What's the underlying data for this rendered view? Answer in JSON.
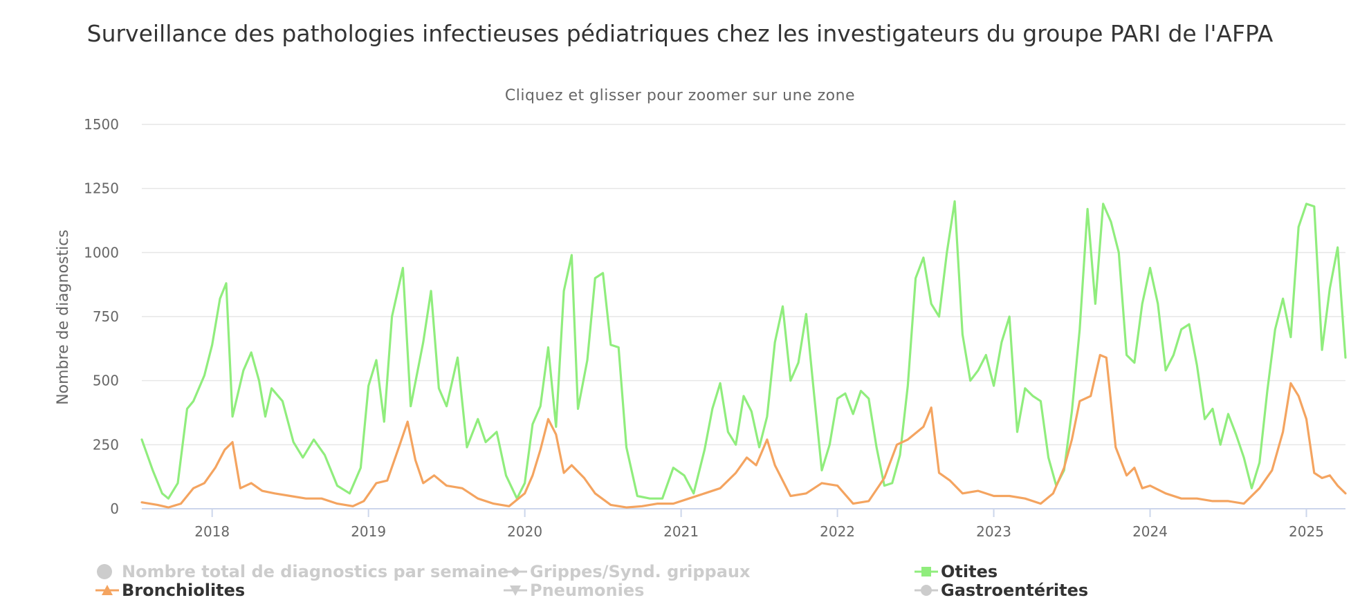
{
  "chart_data": {
    "type": "line",
    "title": "Surveillance des pathologies infectieuses pédiatriques chez les investigateurs du groupe PARI de l'AFPA",
    "subtitle": "Cliquez et glisser pour zoomer sur une zone",
    "ylabel": "Nombre de diagnostics",
    "xlabel": "",
    "ylim": [
      0,
      1500
    ],
    "xlim": [
      2017.55,
      2025.25
    ],
    "yticks": [
      "0",
      "250",
      "500",
      "750",
      "1000",
      "1250",
      "1500"
    ],
    "xticks": [
      "2018",
      "2019",
      "2020",
      "2021",
      "2022",
      "2023",
      "2024",
      "2025"
    ],
    "grid": true,
    "legend_position": "bottom",
    "colors": {
      "otites": "#90ed7d",
      "bronchiolites": "#f4a460",
      "hidden": "#cccccc"
    },
    "series": [
      {
        "name": "Otites",
        "visible": true,
        "points": [
          [
            2017.55,
            270
          ],
          [
            2017.62,
            150
          ],
          [
            2017.68,
            60
          ],
          [
            2017.72,
            40
          ],
          [
            2017.78,
            100
          ],
          [
            2017.84,
            390
          ],
          [
            2017.88,
            420
          ],
          [
            2017.95,
            520
          ],
          [
            2018.0,
            640
          ],
          [
            2018.05,
            820
          ],
          [
            2018.09,
            880
          ],
          [
            2018.13,
            360
          ],
          [
            2018.2,
            540
          ],
          [
            2018.25,
            610
          ],
          [
            2018.3,
            500
          ],
          [
            2018.34,
            360
          ],
          [
            2018.38,
            470
          ],
          [
            2018.45,
            420
          ],
          [
            2018.52,
            260
          ],
          [
            2018.58,
            200
          ],
          [
            2018.65,
            270
          ],
          [
            2018.72,
            210
          ],
          [
            2018.8,
            90
          ],
          [
            2018.88,
            60
          ],
          [
            2018.95,
            160
          ],
          [
            2019.0,
            480
          ],
          [
            2019.05,
            580
          ],
          [
            2019.1,
            340
          ],
          [
            2019.15,
            750
          ],
          [
            2019.22,
            940
          ],
          [
            2019.27,
            400
          ],
          [
            2019.35,
            650
          ],
          [
            2019.4,
            850
          ],
          [
            2019.45,
            470
          ],
          [
            2019.5,
            400
          ],
          [
            2019.57,
            590
          ],
          [
            2019.63,
            240
          ],
          [
            2019.7,
            350
          ],
          [
            2019.75,
            260
          ],
          [
            2019.82,
            300
          ],
          [
            2019.88,
            130
          ],
          [
            2019.95,
            40
          ],
          [
            2020.0,
            100
          ],
          [
            2020.05,
            330
          ],
          [
            2020.1,
            400
          ],
          [
            2020.15,
            630
          ],
          [
            2020.2,
            320
          ],
          [
            2020.25,
            850
          ],
          [
            2020.3,
            990
          ],
          [
            2020.34,
            390
          ],
          [
            2020.4,
            580
          ],
          [
            2020.45,
            900
          ],
          [
            2020.5,
            920
          ],
          [
            2020.55,
            640
          ],
          [
            2020.6,
            630
          ],
          [
            2020.65,
            240
          ],
          [
            2020.72,
            50
          ],
          [
            2020.8,
            40
          ],
          [
            2020.88,
            40
          ],
          [
            2020.95,
            160
          ],
          [
            2021.02,
            130
          ],
          [
            2021.08,
            60
          ],
          [
            2021.15,
            230
          ],
          [
            2021.2,
            390
          ],
          [
            2021.25,
            490
          ],
          [
            2021.3,
            300
          ],
          [
            2021.35,
            250
          ],
          [
            2021.4,
            440
          ],
          [
            2021.45,
            380
          ],
          [
            2021.5,
            240
          ],
          [
            2021.55,
            360
          ],
          [
            2021.6,
            650
          ],
          [
            2021.65,
            790
          ],
          [
            2021.7,
            500
          ],
          [
            2021.75,
            570
          ],
          [
            2021.8,
            760
          ],
          [
            2021.85,
            450
          ],
          [
            2021.9,
            150
          ],
          [
            2021.95,
            250
          ],
          [
            2022.0,
            430
          ],
          [
            2022.05,
            450
          ],
          [
            2022.1,
            370
          ],
          [
            2022.15,
            460
          ],
          [
            2022.2,
            430
          ],
          [
            2022.25,
            240
          ],
          [
            2022.3,
            90
          ],
          [
            2022.35,
            100
          ],
          [
            2022.4,
            210
          ],
          [
            2022.45,
            480
          ],
          [
            2022.5,
            900
          ],
          [
            2022.55,
            980
          ],
          [
            2022.6,
            800
          ],
          [
            2022.65,
            750
          ],
          [
            2022.7,
            1000
          ],
          [
            2022.75,
            1200
          ],
          [
            2022.8,
            680
          ],
          [
            2022.85,
            500
          ],
          [
            2022.9,
            540
          ],
          [
            2022.95,
            600
          ],
          [
            2023.0,
            480
          ],
          [
            2023.05,
            650
          ],
          [
            2023.1,
            750
          ],
          [
            2023.15,
            300
          ],
          [
            2023.2,
            470
          ],
          [
            2023.25,
            440
          ],
          [
            2023.3,
            420
          ],
          [
            2023.35,
            200
          ],
          [
            2023.4,
            90
          ],
          [
            2023.45,
            150
          ],
          [
            2023.5,
            380
          ],
          [
            2023.55,
            700
          ],
          [
            2023.6,
            1170
          ],
          [
            2023.65,
            800
          ],
          [
            2023.7,
            1190
          ],
          [
            2023.75,
            1120
          ],
          [
            2023.8,
            1000
          ],
          [
            2023.85,
            600
          ],
          [
            2023.9,
            570
          ],
          [
            2023.95,
            800
          ],
          [
            2024.0,
            940
          ],
          [
            2024.05,
            800
          ],
          [
            2024.1,
            540
          ],
          [
            2024.15,
            600
          ],
          [
            2024.2,
            700
          ],
          [
            2024.25,
            720
          ],
          [
            2024.3,
            560
          ],
          [
            2024.35,
            350
          ],
          [
            2024.4,
            390
          ],
          [
            2024.45,
            250
          ],
          [
            2024.5,
            370
          ],
          [
            2024.55,
            290
          ],
          [
            2024.6,
            200
          ],
          [
            2024.65,
            80
          ],
          [
            2024.7,
            180
          ],
          [
            2024.75,
            460
          ],
          [
            2024.8,
            700
          ],
          [
            2024.85,
            820
          ],
          [
            2024.9,
            670
          ],
          [
            2024.95,
            1100
          ],
          [
            2025.0,
            1190
          ],
          [
            2025.05,
            1180
          ],
          [
            2025.1,
            620
          ],
          [
            2025.15,
            860
          ],
          [
            2025.2,
            1020
          ],
          [
            2025.25,
            590
          ]
        ]
      },
      {
        "name": "Bronchiolites",
        "visible": true,
        "points": [
          [
            2017.55,
            25
          ],
          [
            2017.65,
            15
          ],
          [
            2017.72,
            5
          ],
          [
            2017.8,
            20
          ],
          [
            2017.88,
            80
          ],
          [
            2017.95,
            100
          ],
          [
            2018.02,
            160
          ],
          [
            2018.08,
            230
          ],
          [
            2018.13,
            260
          ],
          [
            2018.18,
            80
          ],
          [
            2018.25,
            100
          ],
          [
            2018.32,
            70
          ],
          [
            2018.4,
            60
          ],
          [
            2018.5,
            50
          ],
          [
            2018.6,
            40
          ],
          [
            2018.7,
            40
          ],
          [
            2018.8,
            20
          ],
          [
            2018.9,
            10
          ],
          [
            2018.97,
            30
          ],
          [
            2019.05,
            100
          ],
          [
            2019.12,
            110
          ],
          [
            2019.2,
            250
          ],
          [
            2019.25,
            340
          ],
          [
            2019.3,
            190
          ],
          [
            2019.35,
            100
          ],
          [
            2019.42,
            130
          ],
          [
            2019.5,
            90
          ],
          [
            2019.6,
            80
          ],
          [
            2019.7,
            40
          ],
          [
            2019.8,
            20
          ],
          [
            2019.9,
            10
          ],
          [
            2020.0,
            60
          ],
          [
            2020.05,
            130
          ],
          [
            2020.1,
            230
          ],
          [
            2020.15,
            350
          ],
          [
            2020.2,
            290
          ],
          [
            2020.25,
            140
          ],
          [
            2020.3,
            170
          ],
          [
            2020.38,
            120
          ],
          [
            2020.45,
            60
          ],
          [
            2020.55,
            15
          ],
          [
            2020.65,
            5
          ],
          [
            2020.75,
            10
          ],
          [
            2020.85,
            20
          ],
          [
            2020.95,
            20
          ],
          [
            2021.05,
            40
          ],
          [
            2021.15,
            60
          ],
          [
            2021.25,
            80
          ],
          [
            2021.35,
            140
          ],
          [
            2021.42,
            200
          ],
          [
            2021.48,
            170
          ],
          [
            2021.55,
            270
          ],
          [
            2021.6,
            170
          ],
          [
            2021.7,
            50
          ],
          [
            2021.8,
            60
          ],
          [
            2021.9,
            100
          ],
          [
            2022.0,
            90
          ],
          [
            2022.1,
            20
          ],
          [
            2022.2,
            30
          ],
          [
            2022.3,
            120
          ],
          [
            2022.38,
            250
          ],
          [
            2022.45,
            270
          ],
          [
            2022.55,
            320
          ],
          [
            2022.6,
            395
          ],
          [
            2022.65,
            140
          ],
          [
            2022.72,
            110
          ],
          [
            2022.8,
            60
          ],
          [
            2022.9,
            70
          ],
          [
            2023.0,
            50
          ],
          [
            2023.1,
            50
          ],
          [
            2023.2,
            40
          ],
          [
            2023.3,
            20
          ],
          [
            2023.38,
            60
          ],
          [
            2023.45,
            160
          ],
          [
            2023.5,
            270
          ],
          [
            2023.55,
            420
          ],
          [
            2023.62,
            440
          ],
          [
            2023.68,
            600
          ],
          [
            2023.72,
            590
          ],
          [
            2023.78,
            240
          ],
          [
            2023.85,
            130
          ],
          [
            2023.9,
            160
          ],
          [
            2023.95,
            80
          ],
          [
            2024.0,
            90
          ],
          [
            2024.1,
            60
          ],
          [
            2024.2,
            40
          ],
          [
            2024.3,
            40
          ],
          [
            2024.4,
            30
          ],
          [
            2024.5,
            30
          ],
          [
            2024.6,
            20
          ],
          [
            2024.7,
            80
          ],
          [
            2024.78,
            150
          ],
          [
            2024.85,
            300
          ],
          [
            2024.9,
            490
          ],
          [
            2024.95,
            440
          ],
          [
            2025.0,
            350
          ],
          [
            2025.05,
            140
          ],
          [
            2025.1,
            120
          ],
          [
            2025.15,
            130
          ],
          [
            2025.2,
            90
          ],
          [
            2025.25,
            60
          ]
        ]
      }
    ]
  },
  "legend": {
    "items": [
      {
        "label": "Nombre total de diagnostics par semaine",
        "symbol": "circle",
        "visible": false
      },
      {
        "label": "Grippes/Synd. grippaux",
        "symbol": "diamond",
        "visible": false
      },
      {
        "label": "Otites",
        "symbol": "square",
        "visible": true,
        "color": "#90ed7d"
      },
      {
        "label": "Bronchiolites",
        "symbol": "triangle",
        "visible": true,
        "color": "#f4a460"
      },
      {
        "label": "Pneumonies",
        "symbol": "triangle-down",
        "visible": false
      },
      {
        "label": "Gastroentérites",
        "symbol": "circle",
        "visible": false
      }
    ]
  }
}
